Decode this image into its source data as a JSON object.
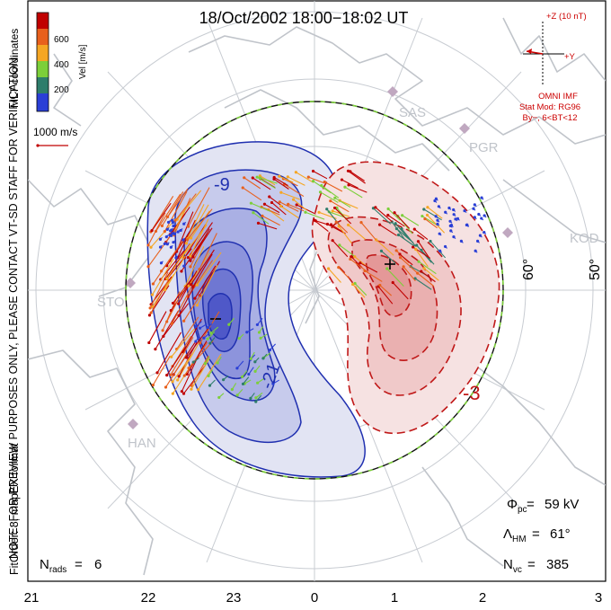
{
  "title": "18/Oct/2002 18:00−18:02 UT",
  "colorbar": {
    "ticks": [
      "600",
      "400",
      "200"
    ],
    "unit_label": "Vel [m/s]",
    "colors": [
      "#c00000",
      "#e8601c",
      "#f5a623",
      "#7ccf3a",
      "#2e7d6b",
      "#2a3fd6"
    ]
  },
  "coord_label": "MLT coordinates",
  "ref_vector_label": "1000 m/s",
  "side_note_1": "NOTE: FOR PREVIEW PURPOSES ONLY, PLEASE CONTACT VT-SD STAFF FOR VERIFICATION.",
  "side_note_2": "FitOrder: 8, mapEX format",
  "imf": {
    "z_label": "+Z (10 nT)",
    "y_label": "+Y",
    "source": "OMNI IMF",
    "model": "Stat Mod: RG96",
    "condition": "By−, 6<BT<12"
  },
  "stations": [
    "SAS",
    "PGR",
    "KOD",
    "STO",
    "HAN"
  ],
  "lat_labels": [
    "60°",
    "50°"
  ],
  "contour_labels": [
    "-9",
    "-21",
    "-3"
  ],
  "stats": {
    "phi_pc": "59 kV",
    "lambda_hm": "61°",
    "n_vc": "385",
    "n_rads": "6"
  },
  "x_ticks": [
    "21",
    "22",
    "23",
    "0",
    "1",
    "2",
    "3"
  ],
  "colors": {
    "negative": "#2030b0",
    "positive": "#c01818",
    "hmb": "#111111",
    "hmb_dash": "#7ccf3a",
    "land": "#c8ccd2"
  }
}
